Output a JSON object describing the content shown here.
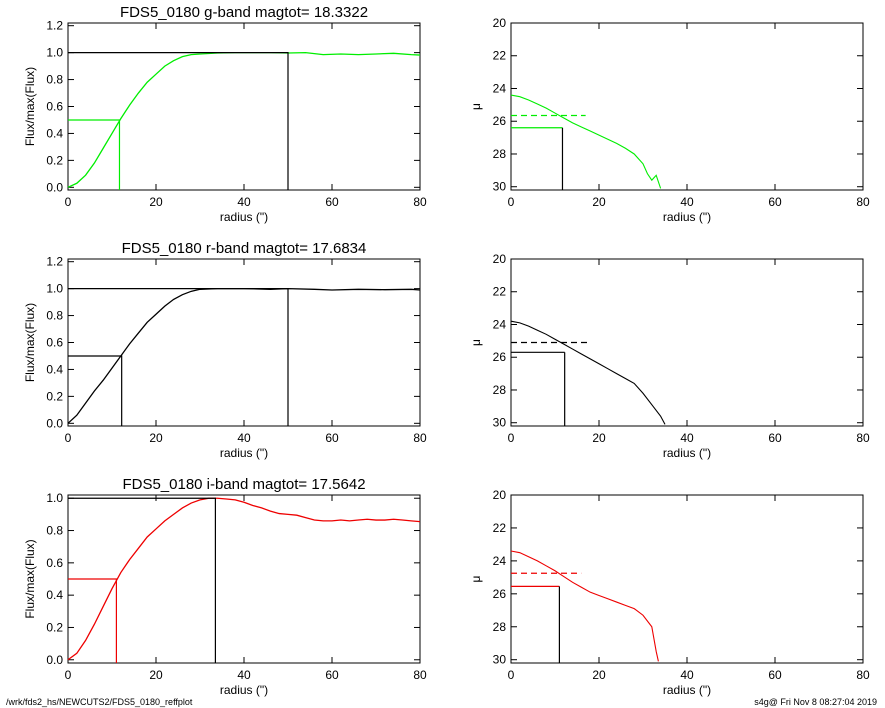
{
  "footer": {
    "path": "/wrk/fds2_hs/NEWCUTS2/FDS5_0180_reffplot",
    "stamp": "s4g@  Fri Nov  8 08:27:04 2019"
  },
  "chart_data": [
    {
      "type": "line",
      "panel": "g-band growth curve",
      "title": "FDS5_0180 g-band  magtot=      18.3322",
      "xlabel": "radius (\")",
      "ylabel": "Flux/max(Flux)",
      "xlim": [
        0,
        80
      ],
      "ylim": [
        -0.02,
        1.22
      ],
      "xticks": [
        0,
        20,
        40,
        60,
        80
      ],
      "yticks": [
        0.0,
        0.2,
        0.4,
        0.6,
        0.8,
        1.0,
        1.2
      ],
      "color": "#00ee00",
      "curve": [
        [
          0,
          0
        ],
        [
          2,
          0.03
        ],
        [
          4,
          0.09
        ],
        [
          6,
          0.18
        ],
        [
          8,
          0.29
        ],
        [
          10,
          0.4
        ],
        [
          12,
          0.51
        ],
        [
          14,
          0.61
        ],
        [
          16,
          0.7
        ],
        [
          18,
          0.78
        ],
        [
          20,
          0.84
        ],
        [
          22,
          0.9
        ],
        [
          24,
          0.94
        ],
        [
          26,
          0.97
        ],
        [
          28,
          0.985
        ],
        [
          30,
          0.99
        ],
        [
          34,
          0.997
        ],
        [
          38,
          1.0
        ],
        [
          42,
          1.0
        ],
        [
          46,
          1.0
        ],
        [
          50,
          0.997
        ],
        [
          54,
          1.0
        ],
        [
          58,
          0.985
        ],
        [
          62,
          0.99
        ],
        [
          66,
          0.985
        ],
        [
          70,
          0.99
        ],
        [
          74,
          0.995
        ],
        [
          78,
          0.985
        ],
        [
          80,
          0.982
        ]
      ],
      "r_half": 11.7,
      "r_total": 50
    },
    {
      "type": "line",
      "panel": "g-band surface brightness",
      "xlabel": "radius (\")",
      "ylabel": "μ",
      "xlim": [
        0,
        80
      ],
      "ylim": [
        30.2,
        20
      ],
      "xticks": [
        0,
        20,
        40,
        60,
        80
      ],
      "yticks": [
        20,
        22,
        24,
        26,
        28,
        30
      ],
      "color": "#00ee00",
      "profile": [
        [
          0,
          24.4
        ],
        [
          2,
          24.5
        ],
        [
          4,
          24.7
        ],
        [
          6,
          24.95
        ],
        [
          8,
          25.2
        ],
        [
          10,
          25.5
        ],
        [
          12,
          25.8
        ],
        [
          14,
          26.1
        ],
        [
          16,
          26.35
        ],
        [
          18,
          26.6
        ],
        [
          20,
          26.85
        ],
        [
          22,
          27.1
        ],
        [
          24,
          27.35
        ],
        [
          26,
          27.65
        ],
        [
          28,
          28.0
        ],
        [
          30,
          28.6
        ],
        [
          31,
          29.2
        ],
        [
          32,
          29.6
        ],
        [
          33,
          29.3
        ],
        [
          34,
          30.1
        ]
      ],
      "mu_effective": 25.65,
      "mu_half": 26.4,
      "r_half": 11.7
    },
    {
      "type": "line",
      "panel": "r-band growth curve",
      "title": "FDS5_0180 r-band  magtot=      17.6834",
      "xlabel": "radius (\")",
      "ylabel": "Flux/max(Flux)",
      "xlim": [
        0,
        80
      ],
      "ylim": [
        -0.02,
        1.22
      ],
      "xticks": [
        0,
        20,
        40,
        60,
        80
      ],
      "yticks": [
        0.0,
        0.2,
        0.4,
        0.6,
        0.8,
        1.0,
        1.2
      ],
      "color": "#000000",
      "curve": [
        [
          0,
          0
        ],
        [
          2,
          0.06
        ],
        [
          4,
          0.15
        ],
        [
          6,
          0.24
        ],
        [
          8,
          0.32
        ],
        [
          10,
          0.41
        ],
        [
          12,
          0.5
        ],
        [
          14,
          0.59
        ],
        [
          16,
          0.67
        ],
        [
          18,
          0.75
        ],
        [
          20,
          0.81
        ],
        [
          22,
          0.87
        ],
        [
          24,
          0.92
        ],
        [
          26,
          0.955
        ],
        [
          28,
          0.98
        ],
        [
          30,
          0.995
        ],
        [
          34,
          1.0
        ],
        [
          40,
          1.0
        ],
        [
          46,
          0.995
        ],
        [
          50,
          1.0
        ],
        [
          56,
          0.995
        ],
        [
          60,
          0.99
        ],
        [
          66,
          0.995
        ],
        [
          72,
          0.992
        ],
        [
          78,
          0.995
        ],
        [
          80,
          0.99
        ]
      ],
      "r_half": 12.2,
      "r_total": 50
    },
    {
      "type": "line",
      "panel": "r-band surface brightness",
      "xlabel": "radius (\")",
      "ylabel": "μ",
      "xlim": [
        0,
        80
      ],
      "ylim": [
        30.2,
        20
      ],
      "xticks": [
        0,
        20,
        40,
        60,
        80
      ],
      "yticks": [
        20,
        22,
        24,
        26,
        28,
        30
      ],
      "color": "#000000",
      "profile": [
        [
          0,
          23.8
        ],
        [
          2,
          23.9
        ],
        [
          4,
          24.1
        ],
        [
          6,
          24.35
        ],
        [
          8,
          24.6
        ],
        [
          10,
          24.9
        ],
        [
          12,
          25.2
        ],
        [
          14,
          25.5
        ],
        [
          16,
          25.8
        ],
        [
          18,
          26.1
        ],
        [
          20,
          26.4
        ],
        [
          22,
          26.7
        ],
        [
          24,
          27.0
        ],
        [
          26,
          27.3
        ],
        [
          28,
          27.6
        ],
        [
          30,
          28.2
        ],
        [
          32,
          28.9
        ],
        [
          34,
          29.6
        ],
        [
          35,
          30.1
        ]
      ],
      "mu_effective": 25.1,
      "mu_half": 25.7,
      "r_half": 12.2
    },
    {
      "type": "line",
      "panel": "i-band growth curve",
      "title": "FDS5_0180 i-band  magtot=      17.5642",
      "xlabel": "radius (\")",
      "ylabel": "Flux/max(Flux)",
      "xlim": [
        0,
        80
      ],
      "ylim": [
        -0.02,
        1.02
      ],
      "xticks": [
        0,
        20,
        40,
        60,
        80
      ],
      "yticks": [
        0.0,
        0.2,
        0.4,
        0.6,
        0.8,
        1.0
      ],
      "color": "#ee0000",
      "curve": [
        [
          0,
          0
        ],
        [
          2,
          0.04
        ],
        [
          4,
          0.12
        ],
        [
          6,
          0.22
        ],
        [
          8,
          0.33
        ],
        [
          10,
          0.44
        ],
        [
          12,
          0.54
        ],
        [
          14,
          0.62
        ],
        [
          16,
          0.69
        ],
        [
          18,
          0.76
        ],
        [
          20,
          0.81
        ],
        [
          22,
          0.86
        ],
        [
          24,
          0.9
        ],
        [
          26,
          0.94
        ],
        [
          28,
          0.97
        ],
        [
          30,
          0.99
        ],
        [
          32,
          1.0
        ],
        [
          34,
          1.0
        ],
        [
          36,
          0.995
        ],
        [
          38,
          0.99
        ],
        [
          40,
          0.975
        ],
        [
          42,
          0.955
        ],
        [
          44,
          0.94
        ],
        [
          46,
          0.92
        ],
        [
          48,
          0.905
        ],
        [
          50,
          0.9
        ],
        [
          52,
          0.895
        ],
        [
          54,
          0.88
        ],
        [
          56,
          0.865
        ],
        [
          58,
          0.86
        ],
        [
          60,
          0.86
        ],
        [
          62,
          0.865
        ],
        [
          64,
          0.86
        ],
        [
          66,
          0.865
        ],
        [
          68,
          0.87
        ],
        [
          70,
          0.865
        ],
        [
          72,
          0.865
        ],
        [
          74,
          0.87
        ],
        [
          76,
          0.865
        ],
        [
          78,
          0.86
        ],
        [
          80,
          0.855
        ]
      ],
      "r_half": 11.0,
      "r_total": 33.5
    },
    {
      "type": "line",
      "panel": "i-band surface brightness",
      "xlabel": "radius (\")",
      "ylabel": "μ",
      "xlim": [
        0,
        80
      ],
      "ylim": [
        30.2,
        20
      ],
      "xticks": [
        0,
        20,
        40,
        60,
        80
      ],
      "yticks": [
        20,
        22,
        24,
        26,
        28,
        30
      ],
      "color": "#ee0000",
      "profile": [
        [
          0,
          23.4
        ],
        [
          2,
          23.5
        ],
        [
          4,
          23.75
        ],
        [
          6,
          24.0
        ],
        [
          8,
          24.3
        ],
        [
          10,
          24.6
        ],
        [
          12,
          24.95
        ],
        [
          14,
          25.3
        ],
        [
          16,
          25.6
        ],
        [
          18,
          25.9
        ],
        [
          20,
          26.1
        ],
        [
          22,
          26.3
        ],
        [
          24,
          26.5
        ],
        [
          26,
          26.7
        ],
        [
          28,
          26.9
        ],
        [
          30,
          27.3
        ],
        [
          32,
          28.0
        ],
        [
          33,
          29.5
        ],
        [
          33.5,
          30.1
        ]
      ],
      "mu_effective": 24.75,
      "mu_half": 25.55,
      "r_half": 11.0
    }
  ]
}
